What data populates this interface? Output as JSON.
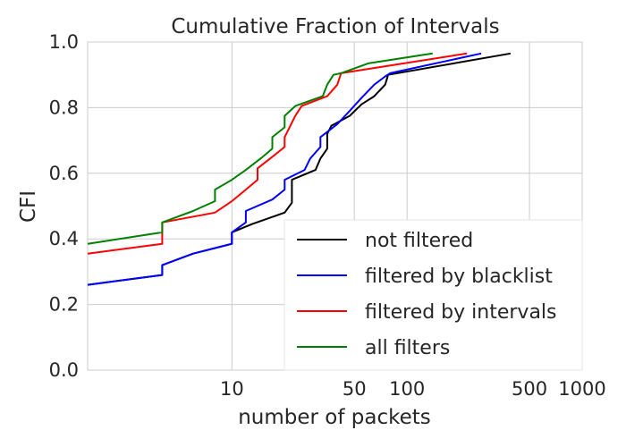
{
  "chart_data": {
    "type": "line",
    "title": "Cumulative Fraction of Intervals",
    "xlabel": "number of packets",
    "ylabel": "CFI",
    "x_scale": "log",
    "xlim": [
      1.5,
      1000
    ],
    "ylim": [
      0.0,
      1.0
    ],
    "grid": true,
    "legend_position": "lower-right",
    "x_ticks": [
      {
        "value": 10,
        "label": "10"
      },
      {
        "value": 50,
        "label": "50"
      },
      {
        "value": 100,
        "label": "100"
      },
      {
        "value": 500,
        "label": "500"
      },
      {
        "value": 1000,
        "label": "1000"
      }
    ],
    "x_gridlines": [
      10,
      50,
      100,
      500,
      1000
    ],
    "y_ticks": [
      {
        "value": 0.0,
        "label": "0.0"
      },
      {
        "value": 0.2,
        "label": "0.2"
      },
      {
        "value": 0.4,
        "label": "0.4"
      },
      {
        "value": 0.6,
        "label": "0.6"
      },
      {
        "value": 0.8,
        "label": "0.8"
      },
      {
        "value": 1.0,
        "label": "1.0"
      }
    ],
    "series": [
      {
        "name": "not filtered",
        "color": "#000000",
        "points": [
          [
            1.5,
            0.26
          ],
          [
            4,
            0.29
          ],
          [
            4,
            0.32
          ],
          [
            6,
            0.355
          ],
          [
            10,
            0.385
          ],
          [
            10,
            0.42
          ],
          [
            13,
            0.445
          ],
          [
            20,
            0.48
          ],
          [
            22,
            0.51
          ],
          [
            22,
            0.58
          ],
          [
            30,
            0.61
          ],
          [
            32,
            0.645
          ],
          [
            35,
            0.675
          ],
          [
            35,
            0.72
          ],
          [
            37,
            0.745
          ],
          [
            47,
            0.775
          ],
          [
            55,
            0.81
          ],
          [
            65,
            0.835
          ],
          [
            75,
            0.87
          ],
          [
            78,
            0.9
          ],
          [
            390,
            0.965
          ]
        ]
      },
      {
        "name": "filtered by blacklist",
        "color": "#0000ff",
        "points": [
          [
            1.5,
            0.26
          ],
          [
            4,
            0.29
          ],
          [
            4,
            0.32
          ],
          [
            6,
            0.355
          ],
          [
            10,
            0.385
          ],
          [
            10,
            0.42
          ],
          [
            12,
            0.45
          ],
          [
            12,
            0.485
          ],
          [
            17,
            0.52
          ],
          [
            20,
            0.55
          ],
          [
            20,
            0.58
          ],
          [
            26,
            0.61
          ],
          [
            28,
            0.645
          ],
          [
            32,
            0.68
          ],
          [
            32,
            0.71
          ],
          [
            40,
            0.75
          ],
          [
            47,
            0.79
          ],
          [
            55,
            0.83
          ],
          [
            65,
            0.87
          ],
          [
            75,
            0.895
          ],
          [
            80,
            0.905
          ],
          [
            265,
            0.965
          ]
        ]
      },
      {
        "name": "filtered by intervals",
        "color": "#ff0000",
        "points": [
          [
            1.5,
            0.355
          ],
          [
            4,
            0.385
          ],
          [
            4,
            0.45
          ],
          [
            8,
            0.48
          ],
          [
            10,
            0.515
          ],
          [
            12,
            0.55
          ],
          [
            14,
            0.58
          ],
          [
            14,
            0.615
          ],
          [
            17,
            0.65
          ],
          [
            20,
            0.68
          ],
          [
            20,
            0.71
          ],
          [
            23,
            0.775
          ],
          [
            25,
            0.805
          ],
          [
            35,
            0.835
          ],
          [
            40,
            0.87
          ],
          [
            42,
            0.905
          ],
          [
            220,
            0.965
          ]
        ]
      },
      {
        "name": "all filters",
        "color": "#008000",
        "points": [
          [
            1.5,
            0.385
          ],
          [
            4,
            0.42
          ],
          [
            4,
            0.45
          ],
          [
            6,
            0.485
          ],
          [
            8,
            0.515
          ],
          [
            8,
            0.55
          ],
          [
            10,
            0.58
          ],
          [
            12,
            0.61
          ],
          [
            15,
            0.65
          ],
          [
            17,
            0.675
          ],
          [
            17,
            0.71
          ],
          [
            20,
            0.74
          ],
          [
            20,
            0.775
          ],
          [
            23,
            0.805
          ],
          [
            33,
            0.835
          ],
          [
            35,
            0.87
          ],
          [
            38,
            0.9
          ],
          [
            42,
            0.905
          ],
          [
            60,
            0.935
          ],
          [
            140,
            0.965
          ]
        ]
      }
    ]
  }
}
